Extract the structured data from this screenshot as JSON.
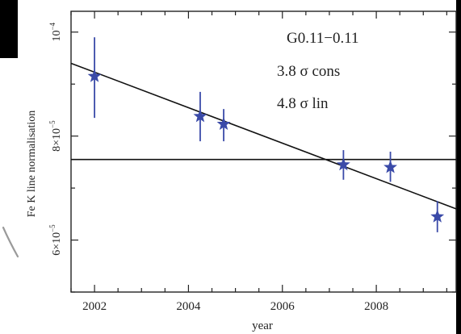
{
  "chart_data": {
    "type": "scatter",
    "title": "",
    "xlabel": "year",
    "ylabel": "Fe K line normalisation",
    "xlim": [
      2001.5,
      2009.7
    ],
    "ylim": [
      5e-05,
      0.000104
    ],
    "x_ticks": [
      2002,
      2004,
      2006,
      2008
    ],
    "x_tick_labels": [
      "2002",
      "2004",
      "2006",
      "2008"
    ],
    "y_ticks": [
      6e-05,
      8e-05,
      0.0001
    ],
    "y_tick_labels": [
      {
        "mantissa": "6×10",
        "exp": "−5"
      },
      {
        "mantissa": "8×10",
        "exp": "−5"
      },
      {
        "mantissa": "10",
        "exp": "−4"
      }
    ],
    "series": [
      {
        "marker": "star",
        "color": "#3a4aa8",
        "points": [
          {
            "x": 2002.0,
            "y": 9.15e-05,
            "yerr_low": 8.35e-05,
            "yerr_high": 9.9e-05
          },
          {
            "x": 2004.25,
            "y": 8.38e-05,
            "yerr_low": 7.9e-05,
            "yerr_high": 8.85e-05
          },
          {
            "x": 2004.75,
            "y": 8.23e-05,
            "yerr_low": 7.9e-05,
            "yerr_high": 8.52e-05
          },
          {
            "x": 2007.3,
            "y": 7.45e-05,
            "yerr_low": 7.16e-05,
            "yerr_high": 7.73e-05
          },
          {
            "x": 2008.3,
            "y": 7.4e-05,
            "yerr_low": 7.12e-05,
            "yerr_high": 7.7e-05
          },
          {
            "x": 2009.3,
            "y": 6.45e-05,
            "yerr_low": 6.15e-05,
            "yerr_high": 6.75e-05
          }
        ]
      }
    ],
    "lines": [
      {
        "kind": "constant",
        "y": 7.55e-05
      },
      {
        "kind": "linear",
        "x0": 2001.5,
        "y0": 9.4e-05,
        "x1": 2009.7,
        "y1": 6.6e-05
      }
    ],
    "annotations": [
      "G0.11−0.11",
      "3.8 σ cons",
      "4.8 σ lin"
    ],
    "grid": false,
    "legend": "none"
  }
}
